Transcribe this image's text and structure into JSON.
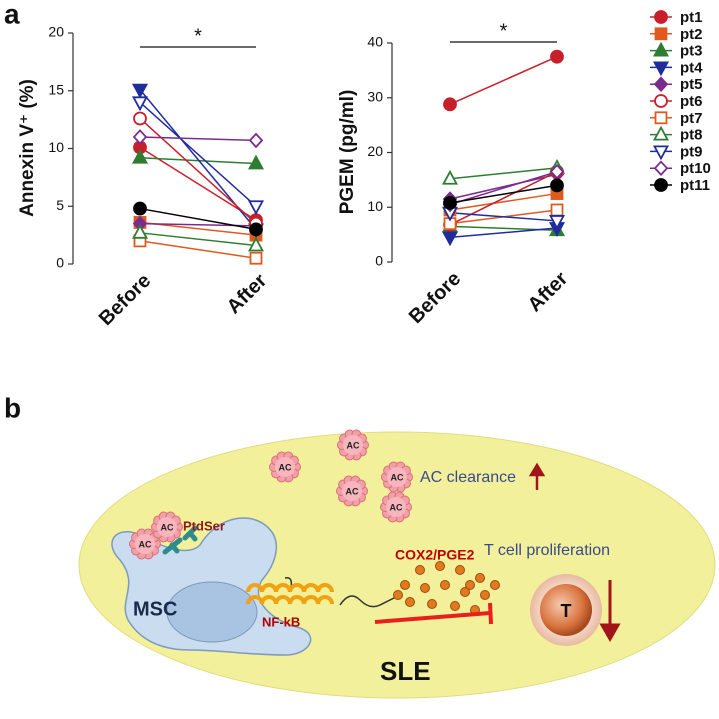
{
  "panel_labels": [
    "a",
    "b"
  ],
  "chart_data": [
    {
      "type": "line",
      "categories": [
        "Before",
        "After"
      ],
      "ylabel": "Annexin V⁺ (%)",
      "ylim": [
        0,
        20
      ],
      "yticks": [
        0,
        5,
        10,
        15,
        20
      ],
      "significance": "*",
      "series": [
        {
          "name": "pt1",
          "color": "#c8202a",
          "marker": "circle",
          "filled": true,
          "values": [
            10.1,
            3.8
          ]
        },
        {
          "name": "pt2",
          "color": "#e05a1f",
          "marker": "square",
          "filled": true,
          "values": [
            3.6,
            2.5
          ]
        },
        {
          "name": "pt3",
          "color": "#2e7d32",
          "marker": "triangle",
          "filled": true,
          "values": [
            9.2,
            8.7
          ]
        },
        {
          "name": "pt4",
          "color": "#1f2d9c",
          "marker": "triangle-down",
          "filled": true,
          "values": [
            15.1,
            3.0
          ]
        },
        {
          "name": "pt5",
          "color": "#7b2a8f",
          "marker": "diamond",
          "filled": true,
          "values": [
            3.5,
            3.3
          ]
        },
        {
          "name": "pt6",
          "color": "#c8202a",
          "marker": "circle",
          "filled": false,
          "values": [
            12.6,
            3.5
          ]
        },
        {
          "name": "pt7",
          "color": "#e05a1f",
          "marker": "square",
          "filled": false,
          "values": [
            2.0,
            0.5
          ]
        },
        {
          "name": "pt8",
          "color": "#2e7d32",
          "marker": "triangle",
          "filled": false,
          "values": [
            2.7,
            1.6
          ]
        },
        {
          "name": "pt9",
          "color": "#1f2d9c",
          "marker": "triangle-down",
          "filled": false,
          "values": [
            14.0,
            5.0
          ]
        },
        {
          "name": "pt10",
          "color": "#7b2a8f",
          "marker": "diamond",
          "filled": false,
          "values": [
            11.0,
            10.7
          ]
        },
        {
          "name": "pt11",
          "color": "#000000",
          "marker": "circle",
          "filled": true,
          "values": [
            4.8,
            3.0
          ]
        }
      ]
    },
    {
      "type": "line",
      "categories": [
        "Before",
        "After"
      ],
      "ylabel": "PGEM (pg/ml)",
      "ylim": [
        0,
        40
      ],
      "yticks": [
        0,
        10,
        20,
        30,
        40
      ],
      "significance": "*",
      "series": [
        {
          "values": [
            28.8,
            37.5
          ]
        },
        {
          "values": [
            9.5,
            12.5
          ]
        },
        {
          "values": [
            6.5,
            5.8
          ]
        },
        {
          "values": [
            4.5,
            6.2
          ]
        },
        {
          "values": [
            11.5,
            16.0
          ]
        },
        {
          "values": [
            6.8,
            16.5
          ]
        },
        {
          "values": [
            7.0,
            9.5
          ]
        },
        {
          "values": [
            15.2,
            17.2
          ]
        },
        {
          "values": [
            9.0,
            7.5
          ]
        },
        {
          "values": [
            10.5,
            16.5
          ]
        },
        {
          "values": [
            10.8,
            14.0
          ]
        }
      ]
    }
  ],
  "diagram": {
    "ac_labels": [
      "AC",
      "AC",
      "AC",
      "AC",
      "AC",
      "AC",
      "AC"
    ],
    "ptdser": "PtdSer",
    "msc": "MSC",
    "nfkb": "NF-kB",
    "cox2": "COX2/PGE2",
    "ac_clearance": "AC clearance",
    "t_cell": "T cell proliferation",
    "t": "T",
    "sle": "SLE"
  }
}
